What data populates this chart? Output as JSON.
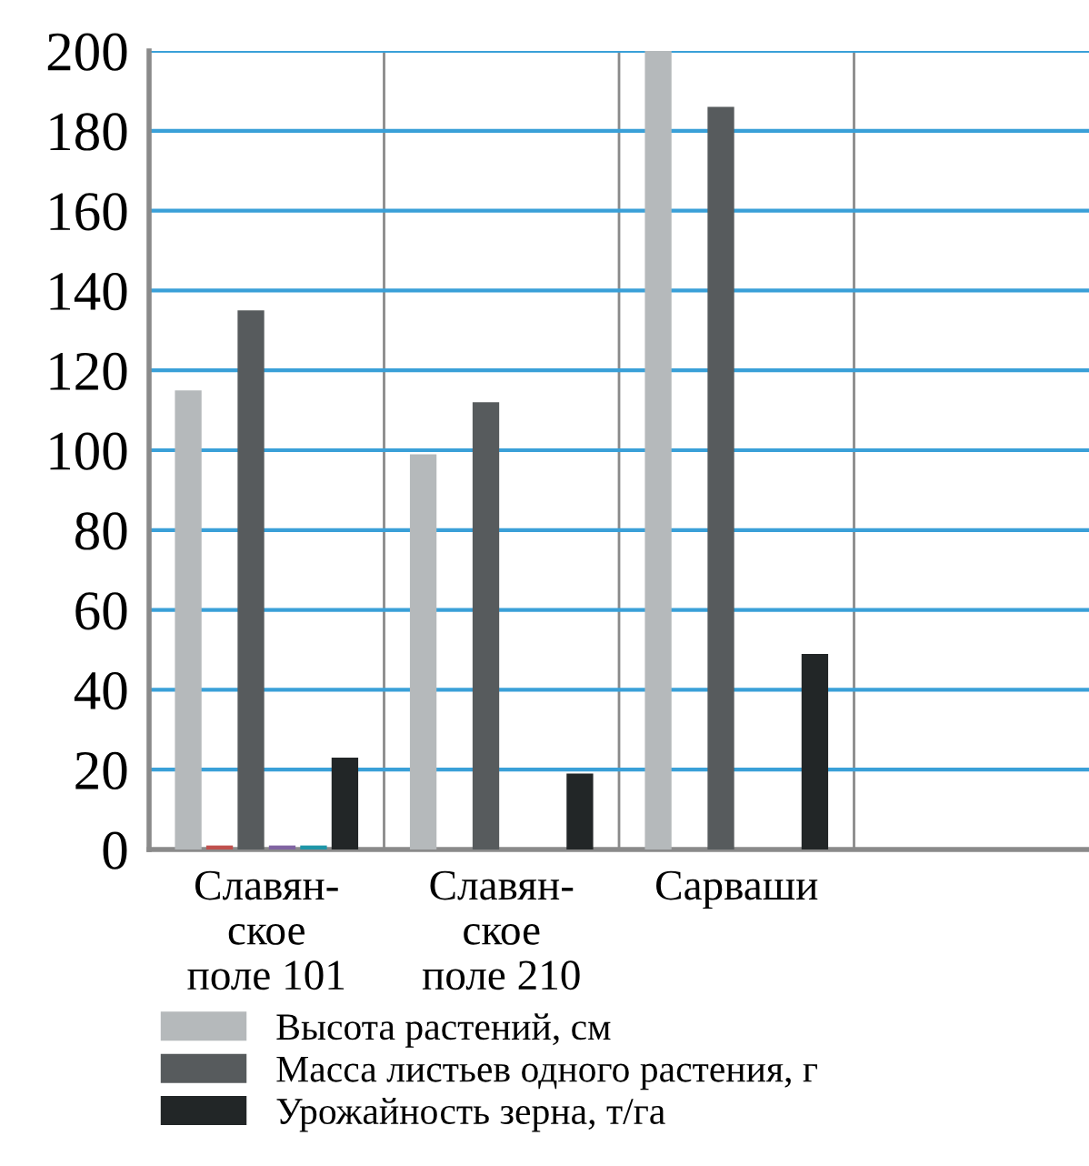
{
  "chart_data": {
    "type": "bar",
    "categories": [
      "Славян-\nское\nполе 101",
      "Славян-\nское\nполе 210",
      "Сарваши",
      null
    ],
    "series": [
      {
        "name": "Высота растений, см",
        "color": "#b5b9bb",
        "values": [
          115,
          99,
          200,
          null
        ]
      },
      {
        "color": "#c0504d",
        "values": [
          1,
          null,
          null,
          null
        ]
      },
      {
        "name": "Масса листьев одного растения, г",
        "color": "#575b5d",
        "values": [
          135,
          112,
          186,
          null
        ]
      },
      {
        "color": "#8064a2",
        "values": [
          1,
          null,
          null,
          null
        ]
      },
      {
        "color": "#1e96a8",
        "values": [
          1,
          null,
          null,
          null
        ]
      },
      {
        "name": "Урожайность зерна, т/га",
        "color": "#222627",
        "values": [
          23,
          19,
          49,
          null
        ]
      }
    ],
    "ylim": [
      0,
      200
    ],
    "yticks": [
      0,
      20,
      40,
      60,
      80,
      100,
      120,
      140,
      160,
      180,
      200
    ],
    "grid": true,
    "legend": "bottom"
  }
}
